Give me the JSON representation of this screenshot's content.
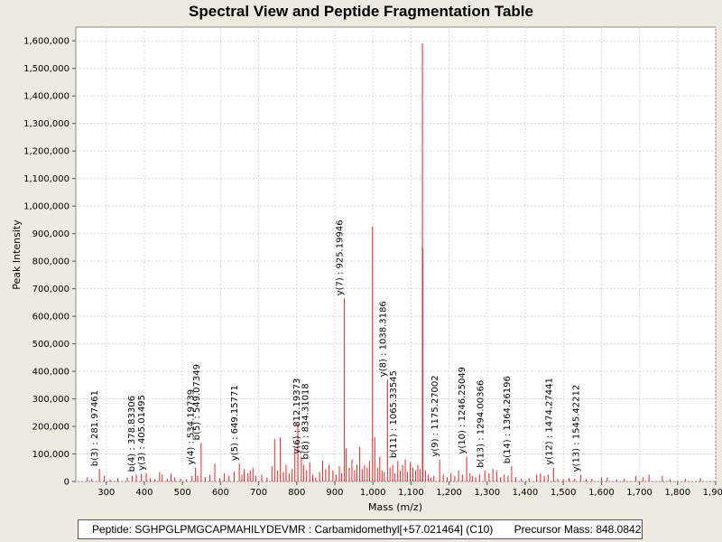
{
  "window": {
    "title": "Spectral View and Peptide Fragmentation Table"
  },
  "info": {
    "peptide": "Peptide: SGHPGLPMGCAPMAHILYDEVMR : Carbamidomethyl[+57.021464] (C10)",
    "precursor": "Precursor Mass: 848.0842"
  },
  "colors": {
    "peak": "#ee2222",
    "background": "#eeeae0",
    "plot": "#ffffff",
    "grid": "#d6d6d6"
  },
  "chart_data": {
    "type": "bar",
    "title": "Spectral View and Peptide Fragmentation Table",
    "xlabel": "Mass (m/z)",
    "ylabel": "Peak Intensity",
    "xlim": [
      220,
      1900
    ],
    "ylim": [
      0,
      1650000
    ],
    "grid": true,
    "x_ticks": [
      300,
      400,
      500,
      600,
      700,
      800,
      900,
      1000,
      1100,
      1200,
      1300,
      1400,
      1500,
      1600,
      1700,
      1800,
      1900
    ],
    "x_tick_labels": [
      "300",
      "400",
      "500",
      "600",
      "700",
      "800",
      "900",
      "1,000",
      "1,100",
      "1,200",
      "1,300",
      "1,400",
      "1,500",
      "1,600",
      "1,700",
      "1,800",
      "1,900"
    ],
    "y_ticks": [
      0,
      100000,
      200000,
      300000,
      400000,
      500000,
      600000,
      700000,
      800000,
      900000,
      1000000,
      1100000,
      1200000,
      1300000,
      1400000,
      1500000,
      1600000
    ],
    "y_tick_labels": [
      "0",
      "100,000",
      "200,000",
      "300,000",
      "400,000",
      "500,000",
      "600,000",
      "700,000",
      "800,000",
      "900,000",
      "1,000,000",
      "1,100,000",
      "1,200,000",
      "1,300,000",
      "1,400,000",
      "1,500,000",
      "1,600,000"
    ],
    "peaks": [
      {
        "mz": 250,
        "i": 15000
      },
      {
        "mz": 262,
        "i": 10000
      },
      {
        "mz": 281.97,
        "i": 45000
      },
      {
        "mz": 295,
        "i": 20000
      },
      {
        "mz": 310,
        "i": 8000
      },
      {
        "mz": 330,
        "i": 12000
      },
      {
        "mz": 355,
        "i": 15000
      },
      {
        "mz": 368,
        "i": 20000
      },
      {
        "mz": 378.83,
        "i": 25000
      },
      {
        "mz": 392,
        "i": 28000
      },
      {
        "mz": 405.01,
        "i": 30000
      },
      {
        "mz": 415,
        "i": 12000
      },
      {
        "mz": 428,
        "i": 8000
      },
      {
        "mz": 440,
        "i": 35000
      },
      {
        "mz": 447,
        "i": 25000
      },
      {
        "mz": 460,
        "i": 10000
      },
      {
        "mz": 470,
        "i": 28000
      },
      {
        "mz": 480,
        "i": 15000
      },
      {
        "mz": 495,
        "i": 10000
      },
      {
        "mz": 510,
        "i": 8000
      },
      {
        "mz": 525,
        "i": 20000
      },
      {
        "mz": 534.2,
        "i": 50000
      },
      {
        "mz": 540,
        "i": 20000
      },
      {
        "mz": 549.07,
        "i": 140000
      },
      {
        "mz": 560,
        "i": 15000
      },
      {
        "mz": 572,
        "i": 25000
      },
      {
        "mz": 585,
        "i": 65000
      },
      {
        "mz": 598,
        "i": 12000
      },
      {
        "mz": 610,
        "i": 30000
      },
      {
        "mz": 622,
        "i": 20000
      },
      {
        "mz": 636,
        "i": 35000
      },
      {
        "mz": 649.16,
        "i": 65000
      },
      {
        "mz": 656,
        "i": 25000
      },
      {
        "mz": 662,
        "i": 45000
      },
      {
        "mz": 672,
        "i": 30000
      },
      {
        "mz": 678,
        "i": 40000
      },
      {
        "mz": 685,
        "i": 50000
      },
      {
        "mz": 693,
        "i": 20000
      },
      {
        "mz": 708,
        "i": 25000
      },
      {
        "mz": 722,
        "i": 15000
      },
      {
        "mz": 735,
        "i": 55000
      },
      {
        "mz": 742,
        "i": 155000
      },
      {
        "mz": 750,
        "i": 40000
      },
      {
        "mz": 757,
        "i": 160000
      },
      {
        "mz": 765,
        "i": 35000
      },
      {
        "mz": 772,
        "i": 60000
      },
      {
        "mz": 780,
        "i": 30000
      },
      {
        "mz": 788,
        "i": 45000
      },
      {
        "mz": 795,
        "i": 120000
      },
      {
        "mz": 803,
        "i": 210000
      },
      {
        "mz": 812.19,
        "i": 90000
      },
      {
        "mz": 818,
        "i": 60000
      },
      {
        "mz": 826,
        "i": 40000
      },
      {
        "mz": 834.31,
        "i": 70000
      },
      {
        "mz": 842,
        "i": 25000
      },
      {
        "mz": 850,
        "i": 15000
      },
      {
        "mz": 860,
        "i": 35000
      },
      {
        "mz": 868,
        "i": 75000
      },
      {
        "mz": 876,
        "i": 45000
      },
      {
        "mz": 885,
        "i": 60000
      },
      {
        "mz": 895,
        "i": 40000
      },
      {
        "mz": 903,
        "i": 25000
      },
      {
        "mz": 912,
        "i": 55000
      },
      {
        "mz": 918,
        "i": 30000
      },
      {
        "mz": 925.2,
        "i": 665000
      },
      {
        "mz": 930,
        "i": 120000
      },
      {
        "mz": 938,
        "i": 50000
      },
      {
        "mz": 945,
        "i": 80000
      },
      {
        "mz": 952,
        "i": 40000
      },
      {
        "mz": 958,
        "i": 60000
      },
      {
        "mz": 965,
        "i": 125000
      },
      {
        "mz": 972,
        "i": 45000
      },
      {
        "mz": 978,
        "i": 60000
      },
      {
        "mz": 985,
        "i": 50000
      },
      {
        "mz": 991,
        "i": 75000
      },
      {
        "mz": 999,
        "i": 925000
      },
      {
        "mz": 1005,
        "i": 160000
      },
      {
        "mz": 1012,
        "i": 50000
      },
      {
        "mz": 1018,
        "i": 90000
      },
      {
        "mz": 1024,
        "i": 40000
      },
      {
        "mz": 1030,
        "i": 35000
      },
      {
        "mz": 1038.32,
        "i": 370000
      },
      {
        "mz": 1045,
        "i": 50000
      },
      {
        "mz": 1052,
        "i": 60000
      },
      {
        "mz": 1058,
        "i": 30000
      },
      {
        "mz": 1065.34,
        "i": 75000
      },
      {
        "mz": 1072,
        "i": 40000
      },
      {
        "mz": 1078,
        "i": 60000
      },
      {
        "mz": 1085,
        "i": 80000
      },
      {
        "mz": 1091,
        "i": 35000
      },
      {
        "mz": 1098,
        "i": 70000
      },
      {
        "mz": 1105,
        "i": 50000
      },
      {
        "mz": 1112,
        "i": 40000
      },
      {
        "mz": 1118,
        "i": 60000
      },
      {
        "mz": 1124,
        "i": 45000
      },
      {
        "mz": 1130,
        "i": 1590000
      },
      {
        "mz": 1131,
        "i": 850000
      },
      {
        "mz": 1138,
        "i": 40000
      },
      {
        "mz": 1145,
        "i": 25000
      },
      {
        "mz": 1152,
        "i": 15000
      },
      {
        "mz": 1160,
        "i": 20000
      },
      {
        "mz": 1175.27,
        "i": 80000
      },
      {
        "mz": 1185,
        "i": 25000
      },
      {
        "mz": 1195,
        "i": 15000
      },
      {
        "mz": 1205,
        "i": 30000
      },
      {
        "mz": 1215,
        "i": 20000
      },
      {
        "mz": 1225,
        "i": 40000
      },
      {
        "mz": 1235,
        "i": 25000
      },
      {
        "mz": 1246.25,
        "i": 90000
      },
      {
        "mz": 1255,
        "i": 30000
      },
      {
        "mz": 1262,
        "i": 20000
      },
      {
        "mz": 1270,
        "i": 15000
      },
      {
        "mz": 1280,
        "i": 25000
      },
      {
        "mz": 1294,
        "i": 40000
      },
      {
        "mz": 1305,
        "i": 30000
      },
      {
        "mz": 1315,
        "i": 45000
      },
      {
        "mz": 1325,
        "i": 40000
      },
      {
        "mz": 1335,
        "i": 15000
      },
      {
        "mz": 1345,
        "i": 25000
      },
      {
        "mz": 1355,
        "i": 20000
      },
      {
        "mz": 1364.26,
        "i": 55000
      },
      {
        "mz": 1375,
        "i": 15000
      },
      {
        "mz": 1390,
        "i": 10000
      },
      {
        "mz": 1410,
        "i": 12000
      },
      {
        "mz": 1430,
        "i": 25000
      },
      {
        "mz": 1440,
        "i": 30000
      },
      {
        "mz": 1450,
        "i": 20000
      },
      {
        "mz": 1460,
        "i": 25000
      },
      {
        "mz": 1474.27,
        "i": 50000
      },
      {
        "mz": 1485,
        "i": 10000
      },
      {
        "mz": 1500,
        "i": 8000
      },
      {
        "mz": 1515,
        "i": 12000
      },
      {
        "mz": 1530,
        "i": 10000
      },
      {
        "mz": 1545.42,
        "i": 25000
      },
      {
        "mz": 1560,
        "i": 8000
      },
      {
        "mz": 1575,
        "i": 10000
      },
      {
        "mz": 1600,
        "i": 15000
      },
      {
        "mz": 1615,
        "i": 15000
      },
      {
        "mz": 1640,
        "i": 8000
      },
      {
        "mz": 1660,
        "i": 10000
      },
      {
        "mz": 1690,
        "i": 20000
      },
      {
        "mz": 1710,
        "i": 15000
      },
      {
        "mz": 1725,
        "i": 25000
      },
      {
        "mz": 1760,
        "i": 20000
      },
      {
        "mz": 1780,
        "i": 8000
      },
      {
        "mz": 1820,
        "i": 10000
      },
      {
        "mz": 1860,
        "i": 12000
      }
    ],
    "annotations": [
      {
        "label": "b(3) : 281.97461",
        "mz": 281.97,
        "i": 45000
      },
      {
        "label": "b(4) : 378.83306",
        "mz": 378.83,
        "i": 25000
      },
      {
        "label": "y(3) : 405.01495",
        "mz": 405.01,
        "i": 30000
      },
      {
        "label": "y(4) : 534.19739",
        "mz": 534.2,
        "i": 50000
      },
      {
        "label": "b(5) : 549.07349",
        "mz": 549.07,
        "i": 140000
      },
      {
        "label": "y(5) : 649.15771",
        "mz": 649.16,
        "i": 65000
      },
      {
        "label": "y(6) : 812.19373",
        "mz": 812.19,
        "i": 90000
      },
      {
        "label": "b(8) : 834.31018",
        "mz": 834.31,
        "i": 70000
      },
      {
        "label": "y(7) : 925.19946",
        "mz": 925.2,
        "i": 665000
      },
      {
        "label": "y(8) : 1038.3186",
        "mz": 1038.32,
        "i": 370000
      },
      {
        "label": "b(11) : 1065.33545",
        "mz": 1065.34,
        "i": 75000
      },
      {
        "label": "y(9) : 1175.27002",
        "mz": 1175.27,
        "i": 80000
      },
      {
        "label": "y(10) : 1246.25049",
        "mz": 1246.25,
        "i": 90000
      },
      {
        "label": "b(13) : 1294.00366",
        "mz": 1294,
        "i": 40000
      },
      {
        "label": "b(14) : 1364.26196",
        "mz": 1364.26,
        "i": 55000
      },
      {
        "label": "y(12) : 1474.27441",
        "mz": 1474.27,
        "i": 50000
      },
      {
        "label": "y(13) : 1545.42212",
        "mz": 1545.42,
        "i": 25000
      }
    ]
  }
}
